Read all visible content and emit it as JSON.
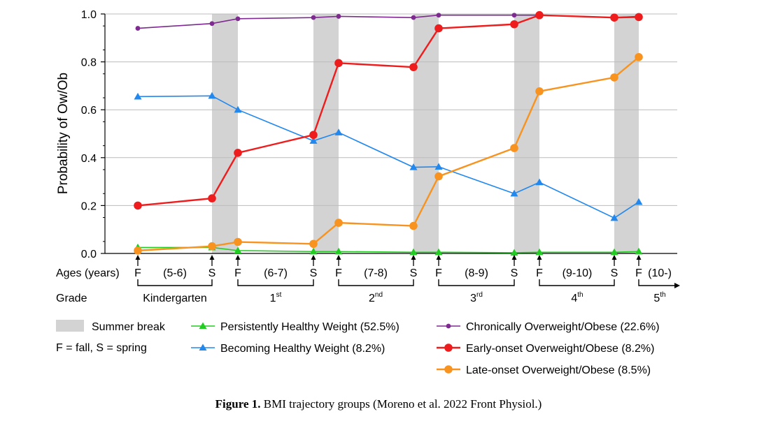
{
  "chart_data": {
    "type": "line",
    "ylabel": "Probability of Ow/Ob",
    "ylim": [
      0,
      1
    ],
    "yticks": [
      "0.0",
      "0.2",
      "0.4",
      "0.6",
      "0.8",
      "1.0"
    ],
    "ages_label": "Ages (years)",
    "grade_label": "Grade",
    "x_points": [
      "F",
      "S",
      "F",
      "S",
      "F",
      "S",
      "F",
      "S",
      "F",
      "S",
      "F"
    ],
    "age_ranges": [
      "(5-6)",
      "(6-7)",
      "(7-8)",
      "(8-9)",
      "(9-10)",
      "(10-)"
    ],
    "grades": [
      {
        "label": "Kindergarten",
        "sup": ""
      },
      {
        "label": "1",
        "sup": "st"
      },
      {
        "label": "2",
        "sup": "nd"
      },
      {
        "label": "3",
        "sup": "rd"
      },
      {
        "label": "4",
        "sup": "th"
      },
      {
        "label": "5",
        "sup": "th"
      }
    ],
    "summer_break_label": "Summer break",
    "fs_note": "F = fall,  S = spring",
    "series": [
      {
        "name": "Persistently Healthy Weight (52.5%)",
        "color": "#22cc22",
        "marker": "triangle",
        "size": "small",
        "values": [
          0.025,
          0.025,
          0.012,
          0.008,
          0.008,
          0.005,
          0.005,
          0.003,
          0.005,
          0.005,
          0.008
        ]
      },
      {
        "name": "Becoming Healthy Weight (8.2%)",
        "color": "#2288ee",
        "marker": "triangle",
        "size": "small",
        "values": [
          0.655,
          0.658,
          0.6,
          0.47,
          0.505,
          0.36,
          0.362,
          0.25,
          0.297,
          0.148,
          0.215
        ]
      },
      {
        "name": "Chronically Overweight/Obese (22.6%)",
        "color": "#7e2a90",
        "marker": "circle",
        "size": "small",
        "values": [
          0.94,
          0.96,
          0.98,
          0.985,
          0.99,
          0.985,
          0.995,
          0.995,
          0.995,
          0.985,
          0.99
        ]
      },
      {
        "name": "Early-onset Overweight/Obese (8.2%)",
        "color": "#ee1c1c",
        "marker": "circle",
        "size": "large",
        "values": [
          0.2,
          0.23,
          0.42,
          0.495,
          0.795,
          0.778,
          0.94,
          0.957,
          0.995,
          0.985,
          0.987
        ]
      },
      {
        "name": "Late-onset Overweight/Obese (8.5%)",
        "color": "#f7931e",
        "marker": "circle",
        "size": "large",
        "values": [
          0.012,
          0.03,
          0.048,
          0.04,
          0.128,
          0.115,
          0.322,
          0.44,
          0.677,
          0.735,
          0.82
        ]
      }
    ],
    "caption_bold": "Figure 1.",
    "caption_text": " BMI trajectory groups (Moreno et al. 2022 Front Physiol.)"
  }
}
